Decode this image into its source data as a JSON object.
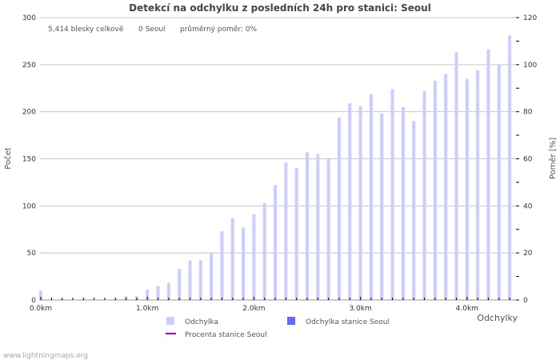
{
  "chart_data": {
    "type": "bar",
    "title": "Detekcí na odchylku z posledních 24h pro stanici: Seoul",
    "summary": {
      "total": "5,414 blesky celkově",
      "station": "0 Seoul",
      "ratio": "průměrný poměr: 0%"
    },
    "xlabel": "Odchylky",
    "ylabel": "Počet",
    "y2label": "Poměr [%]",
    "ylim": [
      0,
      300
    ],
    "y2lim": [
      0,
      120
    ],
    "yticks": [
      "0",
      "50",
      "100",
      "150",
      "200",
      "250",
      "300"
    ],
    "y2ticks": [
      "0",
      "20",
      "40",
      "60",
      "80",
      "100",
      "120"
    ],
    "xticks": [
      "0.0km",
      "1.0km",
      "2.0km",
      "3.0km",
      "4.0km"
    ],
    "x_km": [
      0.0,
      0.1,
      0.2,
      0.3,
      0.4,
      0.5,
      0.6,
      0.7,
      0.8,
      0.9,
      1.0,
      1.1,
      1.2,
      1.3,
      1.4,
      1.5,
      1.6,
      1.7,
      1.8,
      1.9,
      2.0,
      2.1,
      2.2,
      2.3,
      2.4,
      2.5,
      2.6,
      2.7,
      2.8,
      2.9,
      3.0,
      3.1,
      3.2,
      3.3,
      3.4,
      3.5,
      3.6,
      3.7,
      3.8,
      3.9,
      4.0,
      4.1,
      4.2,
      4.3,
      4.4
    ],
    "series": [
      {
        "name": "Odchylka",
        "color": "#ccccff",
        "values": [
          10,
          0,
          1,
          0,
          1,
          0,
          0,
          1,
          4,
          4,
          11,
          15,
          18,
          33,
          42,
          42,
          50,
          73,
          87,
          77,
          91,
          103,
          122,
          146,
          140,
          157,
          155,
          150,
          194,
          209,
          206,
          219,
          198,
          224,
          205,
          190,
          222,
          233,
          240,
          263,
          235,
          244,
          266,
          250,
          281
        ]
      },
      {
        "name": "Odchylka stanice Seoul",
        "color": "#6666ff",
        "values": []
      },
      {
        "name": "Procenta stanice Seoul",
        "color": "#9900cc",
        "values": []
      }
    ]
  },
  "footer": "www.lightningmaps.org"
}
